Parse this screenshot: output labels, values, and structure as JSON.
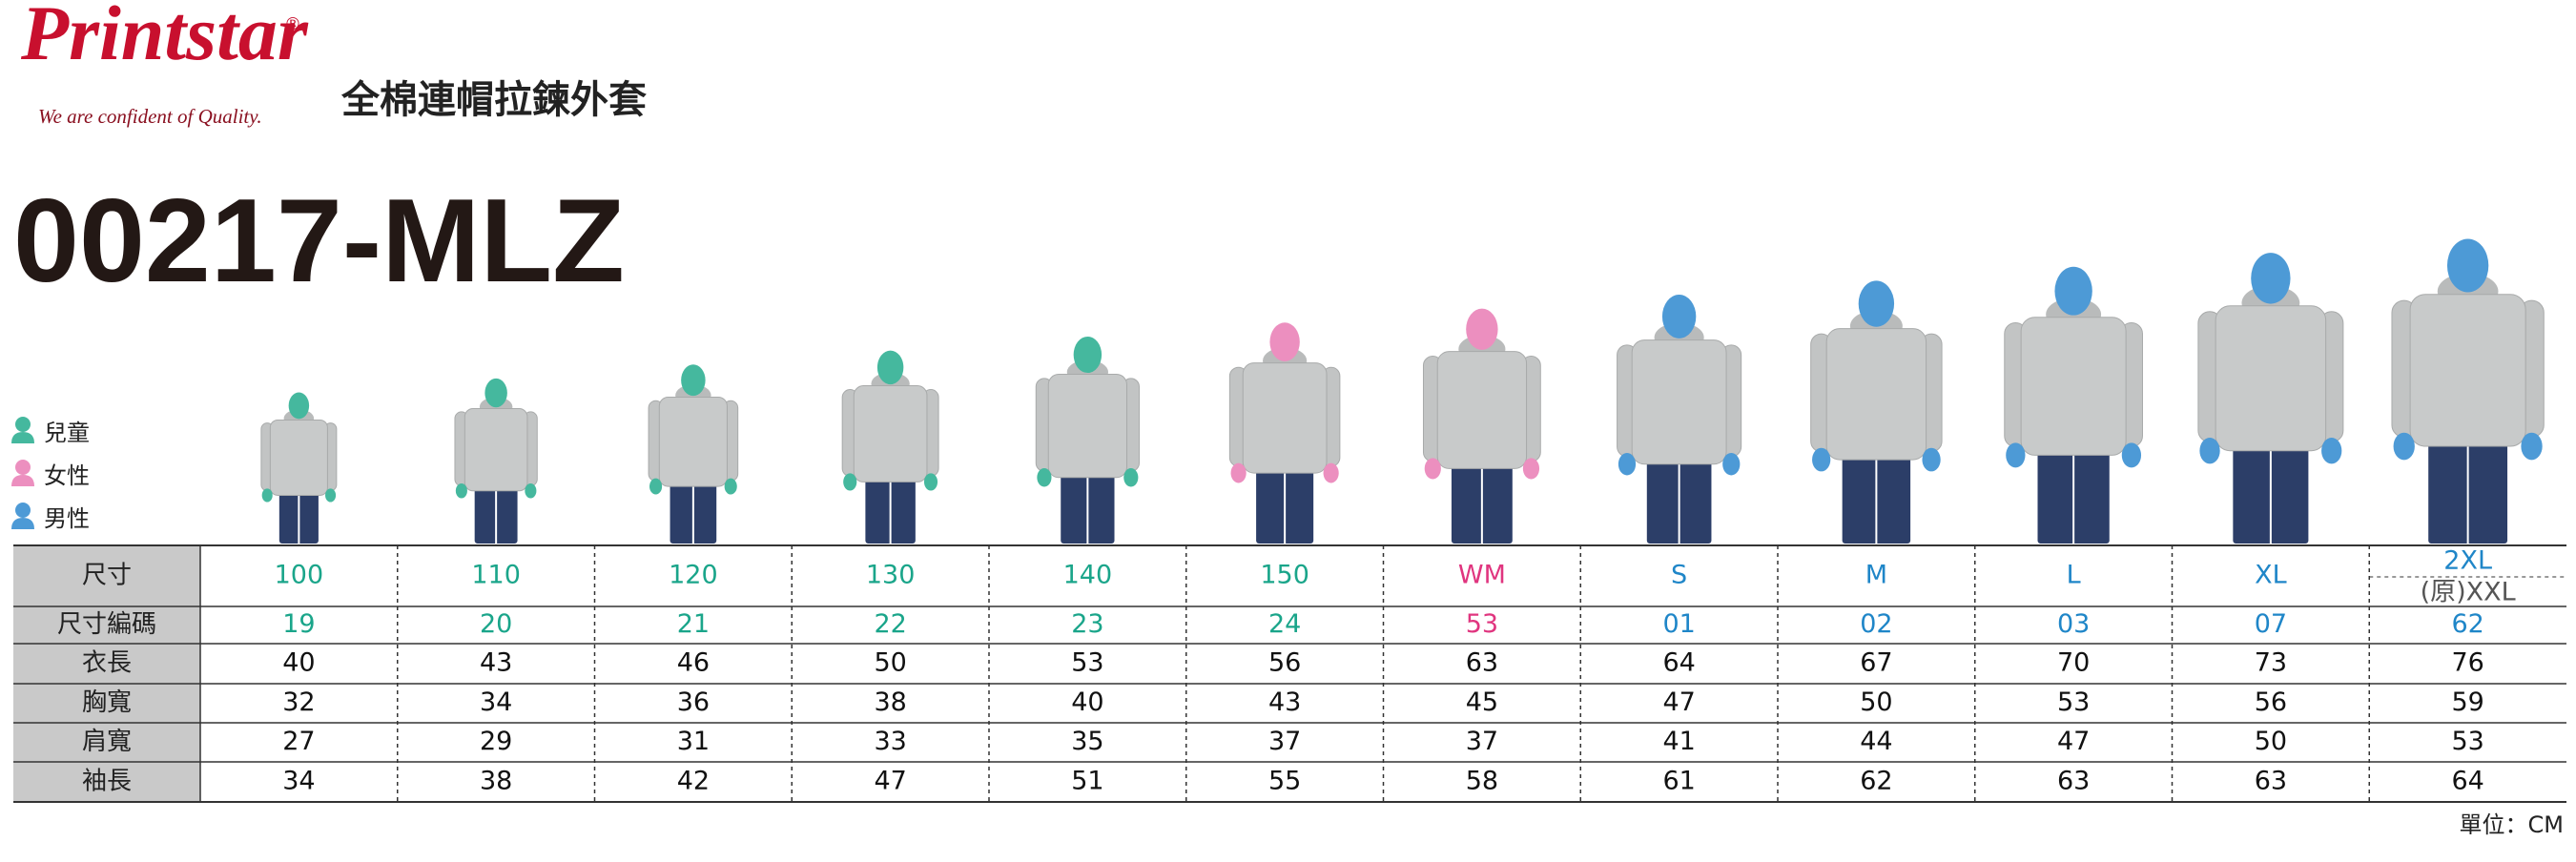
{
  "header": {
    "brand": "Printstar",
    "registered": "®",
    "tagline": "We are confident of Quality.",
    "title": "全棉連帽拉鍊外套",
    "code": "00217-MLZ"
  },
  "legend": [
    {
      "label": "兒童",
      "color": "#45b89e"
    },
    {
      "label": "女性",
      "color": "#ec8fbf"
    },
    {
      "label": "男性",
      "color": "#4d9ad6"
    }
  ],
  "table": {
    "header_labels": [
      "尺寸",
      "尺寸編碼"
    ],
    "sizes": [
      "100",
      "110",
      "120",
      "130",
      "140",
      "150",
      "WM",
      "S",
      "M",
      "L",
      "XL",
      "2XL"
    ],
    "size_alt": "(原)XXL",
    "size_colors": [
      "#1aa58a",
      "#1aa58a",
      "#1aa58a",
      "#1aa58a",
      "#1aa58a",
      "#1aa58a",
      "#e0357f",
      "#1f86c8",
      "#1f86c8",
      "#1f86c8",
      "#1f86c8",
      "#1f86c8"
    ],
    "figure_colors": [
      "#45b89e",
      "#45b89e",
      "#45b89e",
      "#45b89e",
      "#45b89e",
      "#ec8fbf",
      "#ec8fbf",
      "#4d9ad6",
      "#4d9ad6",
      "#4d9ad6",
      "#4d9ad6",
      "#4d9ad6"
    ],
    "codes": [
      "19",
      "20",
      "21",
      "22",
      "23",
      "24",
      "53",
      "01",
      "02",
      "03",
      "07",
      "62"
    ],
    "rows": [
      {
        "label": "衣長",
        "values": [
          40,
          43,
          46,
          50,
          53,
          56,
          63,
          64,
          67,
          70,
          73,
          76
        ]
      },
      {
        "label": "胸寬",
        "values": [
          32,
          34,
          36,
          38,
          40,
          43,
          45,
          47,
          50,
          53,
          56,
          59
        ]
      },
      {
        "label": "肩寬",
        "values": [
          27,
          29,
          31,
          33,
          35,
          37,
          37,
          41,
          44,
          47,
          50,
          53
        ]
      },
      {
        "label": "袖長",
        "values": [
          34,
          38,
          42,
          47,
          51,
          55,
          58,
          61,
          62,
          63,
          63,
          64
        ]
      }
    ]
  },
  "unit": "單位：CM"
}
